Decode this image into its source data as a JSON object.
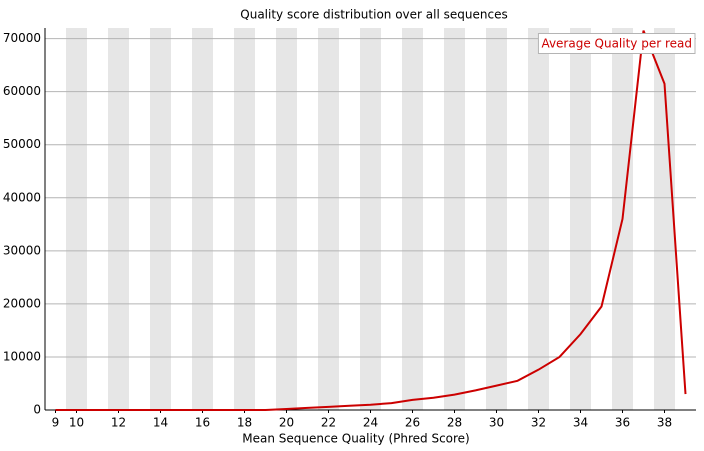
{
  "chart_data": {
    "type": "line",
    "title": "Quality score distribution over all sequences",
    "x_label": "Mean Sequence Quality (Phred Score)",
    "x": [
      9,
      10,
      11,
      12,
      13,
      14,
      15,
      16,
      17,
      18,
      19,
      20,
      21,
      22,
      23,
      24,
      25,
      26,
      27,
      28,
      29,
      30,
      31,
      32,
      33,
      34,
      35,
      36,
      37,
      38,
      39
    ],
    "series": [
      {
        "name": "Average Quality per read",
        "color": "#cc0000",
        "values": [
          0,
          0,
          0,
          0,
          0,
          0,
          0,
          0,
          0,
          0,
          0,
          200,
          400,
          600,
          800,
          1000,
          1300,
          1900,
          2300,
          2900,
          3700,
          4600,
          5500,
          7600,
          10000,
          14300,
          19500,
          36000,
          71500,
          61500,
          3000
        ]
      }
    ],
    "xlim": [
      8.5,
      39.5
    ],
    "xticks": [
      9,
      10,
      12,
      14,
      16,
      18,
      20,
      22,
      24,
      26,
      28,
      30,
      32,
      34,
      36,
      38
    ],
    "ylim": [
      0,
      72000
    ],
    "yticks": [
      0,
      10000,
      20000,
      30000,
      40000,
      50000,
      60000,
      70000
    ],
    "grid": true,
    "legend": "top-right"
  }
}
